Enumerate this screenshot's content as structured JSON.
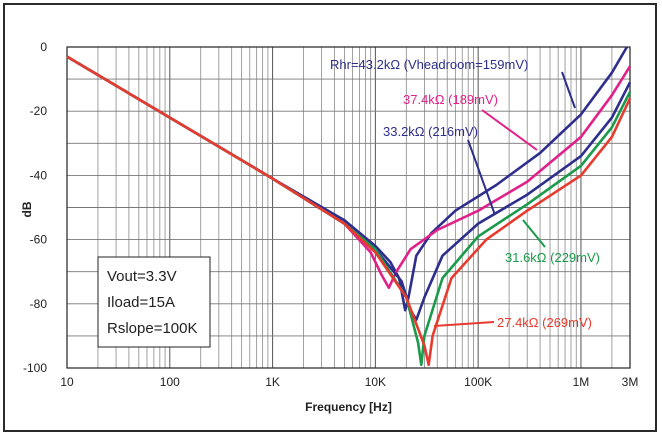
{
  "chart_data": {
    "type": "line",
    "title": "",
    "xlabel": "Frequency [Hz]",
    "ylabel": "dB",
    "x_scale": "log",
    "xlim": [
      10,
      3000000
    ],
    "ylim": [
      -100,
      0
    ],
    "grid": true,
    "x_ticks": [
      {
        "value": 10,
        "label": "10"
      },
      {
        "value": 100,
        "label": "100"
      },
      {
        "value": 1000,
        "label": "1K"
      },
      {
        "value": 10000,
        "label": "10K"
      },
      {
        "value": 100000,
        "label": "100K"
      },
      {
        "value": 1000000,
        "label": "1M"
      },
      {
        "value": 3000000,
        "label": "3M"
      }
    ],
    "y_ticks": [
      {
        "value": 0,
        "label": "0"
      },
      {
        "value": -20,
        "label": "-20"
      },
      {
        "value": -40,
        "label": "-40"
      },
      {
        "value": -60,
        "label": "-60"
      },
      {
        "value": -80,
        "label": "-80"
      },
      {
        "value": -100,
        "label": "-100"
      }
    ],
    "annotation_lines": [
      "Vout=3.3V",
      "Iload=15A",
      "Rslope=100K"
    ],
    "series": [
      {
        "name": "Rhr=43.2kΩ (Vheadroom=159mV)",
        "color": "#2e2e8c",
        "points": [
          [
            10,
            -3
          ],
          [
            100,
            -22
          ],
          [
            1000,
            -41
          ],
          [
            5000,
            -54
          ],
          [
            10000,
            -62
          ],
          [
            14000,
            -67
          ],
          [
            17000,
            -72
          ],
          [
            19500,
            -82
          ],
          [
            21000,
            -78
          ],
          [
            25000,
            -65
          ],
          [
            35000,
            -58
          ],
          [
            60000,
            -51
          ],
          [
            150000,
            -43
          ],
          [
            400000,
            -33
          ],
          [
            1000000,
            -21
          ],
          [
            2000000,
            -8
          ],
          [
            2800000,
            0
          ]
        ]
      },
      {
        "name": "37.4kΩ (189mV)",
        "color": "#e0218a",
        "points": [
          [
            10,
            -3
          ],
          [
            100,
            -22
          ],
          [
            1000,
            -41
          ],
          [
            5000,
            -55
          ],
          [
            9000,
            -64
          ],
          [
            11500,
            -71
          ],
          [
            13500,
            -75
          ],
          [
            16000,
            -70
          ],
          [
            22000,
            -63
          ],
          [
            40000,
            -57
          ],
          [
            100000,
            -51
          ],
          [
            300000,
            -42
          ],
          [
            1000000,
            -28
          ],
          [
            2000000,
            -15
          ],
          [
            3000000,
            -6
          ]
        ]
      },
      {
        "name": "33.2kΩ (216mV)",
        "color": "#2e2e8c",
        "points": [
          [
            10,
            -3
          ],
          [
            100,
            -22
          ],
          [
            1000,
            -41
          ],
          [
            5000,
            -55
          ],
          [
            10000,
            -63
          ],
          [
            18000,
            -73
          ],
          [
            22000,
            -82
          ],
          [
            25000,
            -85
          ],
          [
            30000,
            -78
          ],
          [
            45000,
            -65
          ],
          [
            100000,
            -55
          ],
          [
            300000,
            -46
          ],
          [
            1000000,
            -34
          ],
          [
            2000000,
            -22
          ],
          [
            3000000,
            -11
          ]
        ]
      },
      {
        "name": "31.6kΩ (229mV)",
        "color": "#1a9a4a",
        "points": [
          [
            10,
            -3
          ],
          [
            100,
            -22
          ],
          [
            1000,
            -41
          ],
          [
            5000,
            -55
          ],
          [
            10000,
            -63
          ],
          [
            20000,
            -78
          ],
          [
            26000,
            -92
          ],
          [
            28000,
            -99
          ],
          [
            30000,
            -90
          ],
          [
            45000,
            -72
          ],
          [
            100000,
            -59
          ],
          [
            300000,
            -49
          ],
          [
            1000000,
            -37
          ],
          [
            2000000,
            -25
          ],
          [
            3000000,
            -14
          ]
        ]
      },
      {
        "name": "27.4kΩ (269mV)",
        "color": "#e63b2e",
        "points": [
          [
            10,
            -3
          ],
          [
            100,
            -22
          ],
          [
            1000,
            -41
          ],
          [
            5000,
            -55
          ],
          [
            10000,
            -64
          ],
          [
            20000,
            -78
          ],
          [
            30000,
            -93
          ],
          [
            33000,
            -99
          ],
          [
            36000,
            -90
          ],
          [
            55000,
            -72
          ],
          [
            120000,
            -60
          ],
          [
            300000,
            -51
          ],
          [
            1000000,
            -40
          ],
          [
            2000000,
            -28
          ],
          [
            3000000,
            -16
          ]
        ]
      }
    ]
  }
}
